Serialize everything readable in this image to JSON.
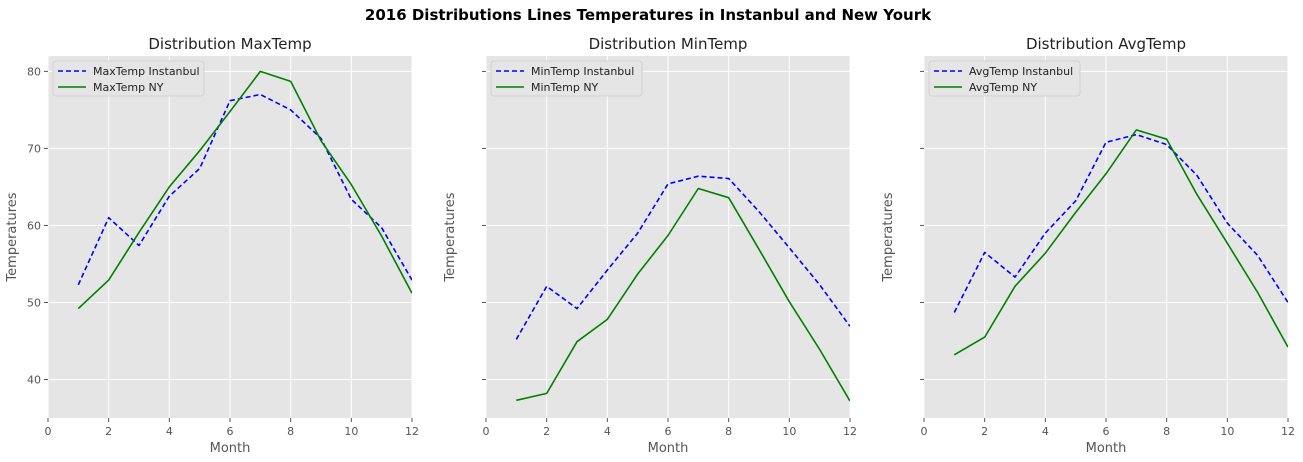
{
  "suptitle": "2016 Distributions Lines Temperatures in Instanbul and New Yourk",
  "colors": {
    "instanbul": "#0000ff",
    "ny": "#008000",
    "panel_bg": "#e5e5e5",
    "grid": "#ffffff"
  },
  "chart_data": [
    {
      "type": "line",
      "title": "Distribution MaxTemp",
      "xlabel": "Month",
      "ylabel": "Temperatures",
      "xlim": [
        0,
        12
      ],
      "ylim": [
        35,
        82
      ],
      "xticks": [
        0,
        2,
        4,
        6,
        8,
        10,
        12
      ],
      "yticks": [
        40,
        50,
        60,
        70,
        80
      ],
      "show_ytick_labels": true,
      "grid": true,
      "legend": "top-left",
      "x": [
        1,
        2,
        3,
        4,
        5,
        6,
        7,
        8,
        9,
        10,
        11,
        12
      ],
      "series": [
        {
          "name": "MaxTemp Instanbul",
          "style": "dashed",
          "color": "#0000ff",
          "values": [
            52.3,
            61.0,
            57.4,
            63.8,
            67.4,
            76.2,
            77.0,
            75.0,
            71.3,
            63.4,
            59.7,
            52.9
          ]
        },
        {
          "name": "MaxTemp NY",
          "style": "solid",
          "color": "#008000",
          "values": [
            49.2,
            52.9,
            59.1,
            65.0,
            69.7,
            74.8,
            80.0,
            78.7,
            71.0,
            65.3,
            58.6,
            51.2
          ]
        }
      ]
    },
    {
      "type": "line",
      "title": "Distribution MinTemp",
      "xlabel": "Month",
      "ylabel": "Temperatures",
      "xlim": [
        0,
        12
      ],
      "ylim": [
        35,
        82
      ],
      "xticks": [
        0,
        2,
        4,
        6,
        8,
        10,
        12
      ],
      "yticks": [
        40,
        50,
        60,
        70,
        80
      ],
      "show_ytick_labels": false,
      "grid": true,
      "legend": "top-left",
      "x": [
        1,
        2,
        3,
        4,
        5,
        6,
        7,
        8,
        9,
        10,
        11,
        12
      ],
      "series": [
        {
          "name": "MinTemp Instanbul",
          "style": "dashed",
          "color": "#0000ff",
          "values": [
            45.2,
            52.1,
            49.2,
            54.2,
            59.0,
            65.4,
            66.4,
            66.1,
            61.8,
            57.1,
            52.3,
            46.9
          ]
        },
        {
          "name": "MinTemp NY",
          "style": "solid",
          "color": "#008000",
          "values": [
            37.3,
            38.2,
            44.9,
            47.8,
            53.7,
            58.7,
            64.8,
            63.6,
            56.9,
            50.1,
            43.9,
            37.2
          ]
        }
      ]
    },
    {
      "type": "line",
      "title": "Distribution AvgTemp",
      "xlabel": "Month",
      "ylabel": "Temperatures",
      "xlim": [
        0,
        12
      ],
      "ylim": [
        35,
        82
      ],
      "xticks": [
        0,
        2,
        4,
        6,
        8,
        10,
        12
      ],
      "yticks": [
        40,
        50,
        60,
        70,
        80
      ],
      "show_ytick_labels": false,
      "grid": true,
      "legend": "top-left",
      "x": [
        1,
        2,
        3,
        4,
        5,
        6,
        7,
        8,
        9,
        10,
        11,
        12
      ],
      "series": [
        {
          "name": "AvgTemp Instanbul",
          "style": "dashed",
          "color": "#0000ff",
          "values": [
            48.7,
            56.5,
            53.3,
            59.0,
            63.2,
            70.8,
            71.8,
            70.5,
            66.5,
            60.3,
            56.1,
            50.0
          ]
        },
        {
          "name": "AvgTemp NY",
          "style": "solid",
          "color": "#008000",
          "values": [
            43.2,
            45.5,
            52.1,
            56.4,
            61.7,
            66.7,
            72.4,
            71.2,
            64.0,
            57.7,
            51.3,
            44.2
          ]
        }
      ]
    }
  ]
}
